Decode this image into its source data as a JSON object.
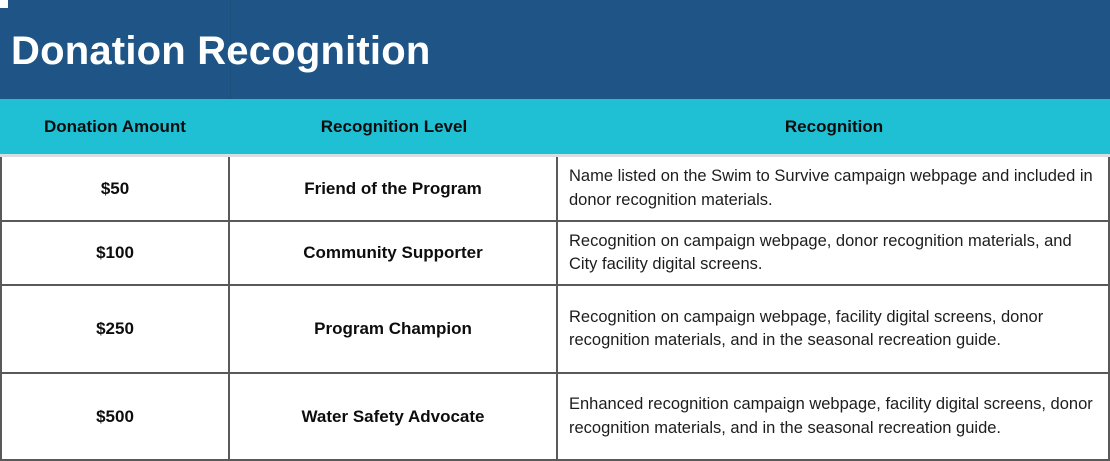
{
  "title": "Donation Recognition",
  "colors": {
    "title_band_bg": "#1E5586",
    "header_band_bg": "#1FBFD4",
    "table_border": "#595959",
    "title_text": "#ffffff",
    "body_text": "#1d1d1d"
  },
  "table": {
    "columns": [
      "Donation Amount",
      "Recognition Level",
      "Recognition"
    ],
    "rows": [
      {
        "amount": "$50",
        "level": "Friend of the Program",
        "recognition": "Name listed on the Swim to Survive campaign webpage and included in donor recognition materials."
      },
      {
        "amount": "$100",
        "level": "Community Supporter",
        "recognition": "Recognition on campaign webpage, donor recognition materials, and City facility digital screens."
      },
      {
        "amount": "$250",
        "level": "Program Champion",
        "recognition": "Recognition on campaign webpage, facility digital screens, donor recognition materials, and in the seasonal recreation guide."
      },
      {
        "amount": "$500",
        "level": "Water Safety Advocate",
        "recognition": "Enhanced recognition campaign webpage, facility digital screens, donor recognition materials, and in the seasonal recreation guide."
      }
    ]
  }
}
